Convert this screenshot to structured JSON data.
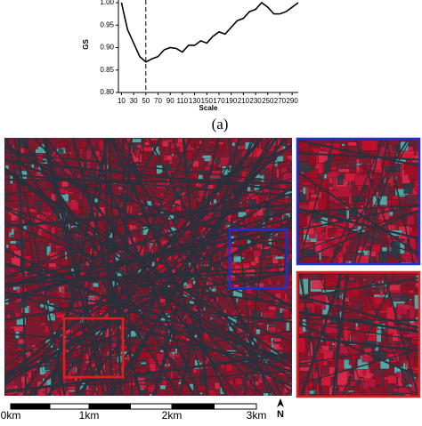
{
  "chart_data": {
    "type": "line",
    "x_label": "Scale",
    "y_label": "GS",
    "x": [
      10,
      20,
      30,
      40,
      50,
      60,
      70,
      80,
      90,
      100,
      110,
      120,
      130,
      140,
      150,
      160,
      170,
      180,
      190,
      200,
      210,
      220,
      230,
      240,
      250,
      260,
      270,
      280,
      290,
      300
    ],
    "values": [
      1.0,
      0.94,
      0.91,
      0.88,
      0.868,
      0.875,
      0.88,
      0.895,
      0.9,
      0.898,
      0.89,
      0.905,
      0.905,
      0.915,
      0.91,
      0.925,
      0.935,
      0.93,
      0.945,
      0.96,
      0.965,
      0.98,
      0.985,
      1.0,
      0.99,
      0.975,
      0.975,
      0.98,
      0.99,
      1.0
    ],
    "color": "#000000",
    "vline": 50,
    "xlim": [
      5,
      300
    ],
    "ylim": [
      0.8,
      1.0
    ],
    "xticks": [
      10,
      30,
      50,
      70,
      90,
      110,
      130,
      150,
      170,
      190,
      210,
      230,
      250,
      270,
      290
    ],
    "yticks": [
      {
        "value": 0.8,
        "label": "0.80"
      },
      0.85,
      {
        "value": 0.9,
        "label": "0.90"
      },
      0.95,
      {
        "value": 1.0,
        "label": "1.00"
      }
    ]
  },
  "figure_label": "(a)",
  "scale_bar": [
    "0km",
    "1km",
    "2km",
    "3km"
  ],
  "north": "N"
}
